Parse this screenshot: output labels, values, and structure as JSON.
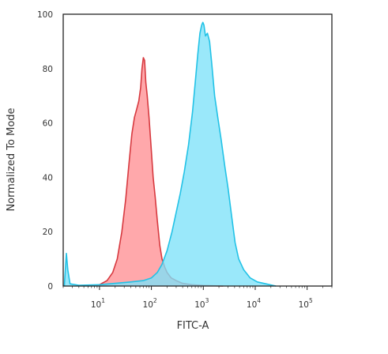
{
  "chart_data": {
    "type": "area",
    "xlabel": "FITC-A",
    "ylabel": "Normalized To Mode",
    "x_scale": "log",
    "xlim": [
      2,
      300000
    ],
    "ylim": [
      0,
      100
    ],
    "x_ticks": [
      {
        "base": "10",
        "exp": "1",
        "value": 10
      },
      {
        "base": "10",
        "exp": "2",
        "value": 100
      },
      {
        "base": "10",
        "exp": "3",
        "value": 1000
      },
      {
        "base": "10",
        "exp": "4",
        "value": 10000
      },
      {
        "base": "10",
        "exp": "5",
        "value": 100000
      }
    ],
    "y_ticks": [
      "0",
      "20",
      "40",
      "60",
      "80",
      "100"
    ],
    "grid": false,
    "series": [
      {
        "color_fill": "#ff8f94",
        "color_line": "#d7393f",
        "points": [
          [
            6,
            0
          ],
          [
            10,
            0.5
          ],
          [
            14,
            2
          ],
          [
            18,
            5
          ],
          [
            22,
            10
          ],
          [
            27,
            20
          ],
          [
            32,
            32
          ],
          [
            37,
            45
          ],
          [
            42,
            56
          ],
          [
            47,
            62
          ],
          [
            52,
            65
          ],
          [
            57,
            68
          ],
          [
            62,
            73
          ],
          [
            66,
            80
          ],
          [
            70,
            84
          ],
          [
            74,
            83
          ],
          [
            78,
            75
          ],
          [
            83,
            70
          ],
          [
            90,
            62
          ],
          [
            98,
            52
          ],
          [
            108,
            40
          ],
          [
            118,
            33
          ],
          [
            130,
            24
          ],
          [
            145,
            15
          ],
          [
            160,
            10
          ],
          [
            180,
            7
          ],
          [
            200,
            5
          ],
          [
            240,
            3
          ],
          [
            300,
            2
          ],
          [
            400,
            1
          ],
          [
            600,
            0.5
          ],
          [
            1000,
            0.2
          ],
          [
            2400,
            0
          ]
        ]
      },
      {
        "color_fill": "#7ee2f8",
        "color_line": "#22c2e6",
        "points": [
          [
            2.1,
            0
          ],
          [
            2.3,
            12
          ],
          [
            2.45,
            6
          ],
          [
            2.7,
            0.8
          ],
          [
            4,
            0.3
          ],
          [
            10,
            0.5
          ],
          [
            20,
            1
          ],
          [
            40,
            1.5
          ],
          [
            70,
            2
          ],
          [
            100,
            3
          ],
          [
            130,
            5
          ],
          [
            160,
            8
          ],
          [
            200,
            13
          ],
          [
            250,
            20
          ],
          [
            300,
            27
          ],
          [
            360,
            34
          ],
          [
            430,
            42
          ],
          [
            520,
            52
          ],
          [
            620,
            64
          ],
          [
            700,
            75
          ],
          [
            780,
            85
          ],
          [
            860,
            93
          ],
          [
            930,
            96
          ],
          [
            980,
            97
          ],
          [
            1030,
            96
          ],
          [
            1100,
            92
          ],
          [
            1200,
            93
          ],
          [
            1320,
            90
          ],
          [
            1450,
            82
          ],
          [
            1650,
            70
          ],
          [
            1900,
            62
          ],
          [
            2200,
            54
          ],
          [
            2600,
            44
          ],
          [
            3000,
            36
          ],
          [
            3500,
            26
          ],
          [
            4100,
            16
          ],
          [
            4800,
            10
          ],
          [
            6000,
            6
          ],
          [
            8000,
            3
          ],
          [
            11000,
            1.5
          ],
          [
            16000,
            0.8
          ],
          [
            25000,
            0
          ]
        ]
      }
    ]
  }
}
